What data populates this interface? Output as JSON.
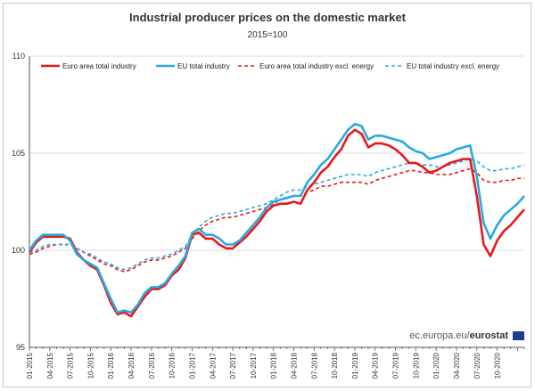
{
  "chart_data": {
    "type": "line",
    "title": "Industrial producer prices on the domestic market",
    "subtitle": "2015=100",
    "ylim": [
      95,
      110
    ],
    "yticks": [
      95,
      100,
      105,
      110
    ],
    "x_tick_labels": [
      "01-2015",
      "04-2015",
      "07-2015",
      "10-2015",
      "01-2016",
      "04-2016",
      "07-2016",
      "10-2016",
      "01-2017",
      "04-2017",
      "07-2017",
      "10-2017",
      "01-2018",
      "04-2018",
      "07-2018",
      "10-2018",
      "01-2019",
      "04-2019",
      "07-2019",
      "10-2019",
      "01-2020",
      "04-2020",
      "07-2020",
      "10-2020"
    ],
    "legend_position": "top",
    "series": [
      {
        "name": "Euro area total industry",
        "color": "#e8171c",
        "style": "solid",
        "values": [
          99.9,
          100.4,
          100.7,
          100.7,
          100.7,
          100.7,
          100.6,
          99.9,
          99.5,
          99.2,
          99.0,
          98.2,
          97.3,
          96.7,
          96.8,
          96.6,
          97.1,
          97.6,
          98.0,
          98.0,
          98.2,
          98.7,
          99.0,
          99.6,
          100.8,
          100.9,
          100.6,
          100.6,
          100.3,
          100.1,
          100.1,
          100.4,
          100.7,
          101.1,
          101.5,
          102.0,
          102.3,
          102.4,
          102.4,
          102.5,
          102.4,
          103.1,
          103.5,
          104.0,
          104.3,
          104.8,
          105.2,
          105.9,
          106.2,
          106.0,
          105.3,
          105.5,
          105.5,
          105.4,
          105.2,
          104.9,
          104.5,
          104.5,
          104.3,
          104.0,
          104.1,
          104.3,
          104.5,
          104.6,
          104.7,
          104.7,
          102.8,
          100.3,
          99.7,
          100.5,
          101.0,
          101.3,
          101.7,
          102.1
        ]
      },
      {
        "name": "EU total industry",
        "color": "#29a9df",
        "style": "solid",
        "values": [
          100.0,
          100.5,
          100.8,
          100.8,
          100.8,
          100.8,
          100.5,
          99.8,
          99.5,
          99.3,
          99.1,
          98.3,
          97.5,
          96.8,
          96.9,
          96.8,
          97.2,
          97.8,
          98.1,
          98.1,
          98.3,
          98.8,
          99.2,
          99.7,
          100.9,
          101.1,
          100.8,
          100.8,
          100.6,
          100.3,
          100.3,
          100.5,
          100.9,
          101.3,
          101.7,
          102.2,
          102.5,
          102.6,
          102.7,
          102.8,
          102.8,
          103.5,
          103.9,
          104.4,
          104.7,
          105.2,
          105.7,
          106.2,
          106.5,
          106.4,
          105.7,
          105.9,
          105.9,
          105.8,
          105.7,
          105.6,
          105.3,
          105.1,
          105.0,
          104.7,
          104.8,
          104.9,
          105.0,
          105.2,
          105.3,
          105.4,
          103.8,
          101.4,
          100.6,
          101.3,
          101.8,
          102.1,
          102.4,
          102.8
        ]
      },
      {
        "name": "Euro area total industry excl. energy",
        "color": "#e8171c",
        "style": "dashed",
        "values": [
          99.8,
          99.9,
          100.1,
          100.2,
          100.3,
          100.3,
          100.3,
          100.1,
          99.9,
          99.7,
          99.5,
          99.3,
          99.2,
          99.0,
          98.9,
          99.0,
          99.2,
          99.4,
          99.5,
          99.5,
          99.6,
          99.7,
          99.9,
          100.1,
          100.6,
          101.0,
          101.3,
          101.5,
          101.6,
          101.7,
          101.7,
          101.8,
          101.9,
          102.0,
          102.1,
          102.2,
          102.4,
          102.6,
          102.7,
          102.8,
          102.8,
          103.0,
          103.1,
          103.3,
          103.3,
          103.4,
          103.5,
          103.5,
          103.5,
          103.5,
          103.4,
          103.6,
          103.7,
          103.8,
          103.9,
          104.0,
          104.1,
          104.1,
          104.0,
          104.0,
          103.9,
          103.9,
          103.9,
          104.0,
          104.1,
          104.2,
          104.0,
          103.6,
          103.5,
          103.5,
          103.6,
          103.6,
          103.7,
          103.7
        ]
      },
      {
        "name": "EU total industry excl. energy",
        "color": "#29a9df",
        "style": "dashed",
        "values": [
          99.9,
          100.0,
          100.2,
          100.3,
          100.3,
          100.3,
          100.3,
          100.1,
          99.9,
          99.8,
          99.6,
          99.4,
          99.3,
          99.1,
          99.0,
          99.1,
          99.3,
          99.5,
          99.6,
          99.6,
          99.7,
          99.8,
          100.0,
          100.2,
          100.8,
          101.2,
          101.5,
          101.7,
          101.8,
          101.9,
          101.9,
          102.0,
          102.1,
          102.2,
          102.3,
          102.4,
          102.6,
          102.8,
          103.0,
          103.1,
          103.1,
          103.3,
          103.4,
          103.5,
          103.6,
          103.7,
          103.8,
          103.9,
          103.9,
          103.9,
          103.8,
          104.0,
          104.1,
          104.2,
          104.3,
          104.4,
          104.5,
          104.5,
          104.4,
          104.4,
          104.3,
          104.3,
          104.4,
          104.5,
          104.6,
          104.7,
          104.6,
          104.3,
          104.1,
          104.1,
          104.2,
          104.2,
          104.3,
          104.4
        ]
      }
    ]
  },
  "source": {
    "prefix": "ec.europa.eu/",
    "brand": "eurostat"
  }
}
